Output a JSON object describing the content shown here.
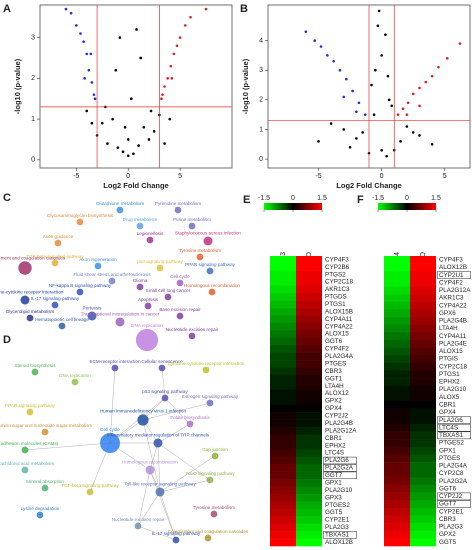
{
  "panels": [
    "A",
    "B",
    "C",
    "D",
    "E",
    "F"
  ],
  "chart_data": [
    {
      "type": "scatter",
      "xlabel": "Log2 Fold Change",
      "ylabel": "-log10 (p-value)",
      "xlim": [
        -8.5,
        10
      ],
      "ylim": [
        -0.2,
        3.8
      ],
      "xticks": [
        -5,
        0,
        5
      ],
      "yticks": [
        0,
        1,
        2,
        3
      ],
      "thresholds": {
        "x": [
          -3,
          3
        ],
        "y": 1.3
      },
      "threshold_color": "#e03030",
      "series": [
        {
          "color": "#000000",
          "x": [
            -3,
            -2.5,
            -2,
            -1.5,
            -1,
            -0.5,
            0,
            0.5,
            1,
            1.5,
            2,
            2.5,
            3,
            -4,
            4,
            -1.2,
            1.2,
            -0.3,
            0.3,
            -2.2,
            2.2,
            -3.5,
            3.5,
            0,
            -0.8,
            0.8
          ],
          "y": [
            0.6,
            0.9,
            0.4,
            1.0,
            0.3,
            0.2,
            0.1,
            0.15,
            0.35,
            0.8,
            0.5,
            0.7,
            1.1,
            1.2,
            1.0,
            2.2,
            2.5,
            0.8,
            1.5,
            1.3,
            1.2,
            0.9,
            0.4,
            0.5,
            3.0,
            3.2
          ]
        },
        {
          "color": "#2030d0",
          "x": [
            -3.2,
            -3.5,
            -3.8,
            -4,
            -4.3,
            -4.6,
            -5,
            -5.5,
            -6,
            -3.3,
            -4.2,
            -3.6
          ],
          "y": [
            1.5,
            1.9,
            2.2,
            2.6,
            2.9,
            3.1,
            3.3,
            3.6,
            3.7,
            1.6,
            2.0,
            2.6
          ]
        },
        {
          "color": "#e02020",
          "x": [
            3.2,
            3.5,
            3.8,
            4.1,
            4.4,
            4.7,
            5,
            5.5,
            6,
            7.5,
            3.3,
            4.2
          ],
          "y": [
            1.5,
            1.8,
            2.0,
            2.3,
            2.6,
            2.8,
            3.0,
            3.3,
            3.5,
            3.7,
            1.6,
            2.0
          ]
        }
      ]
    },
    {
      "type": "scatter",
      "xlabel": "Log2 Fold Change",
      "ylabel": "-log10 (p-value)",
      "xlim": [
        -9,
        7
      ],
      "ylim": [
        -0.3,
        5.2
      ],
      "xticks": [
        -5,
        0,
        5
      ],
      "yticks": [
        0,
        1,
        2,
        3,
        4
      ],
      "thresholds": {
        "x": [
          -1,
          1
        ],
        "y": 1.3
      },
      "threshold_color": "#e03030",
      "series": [
        {
          "color": "#000000",
          "x": [
            -3,
            -2,
            -1.5,
            -0.8,
            -0.5,
            0,
            0.5,
            0.8,
            1.5,
            2,
            3,
            -4,
            4,
            -0.3,
            0.3,
            -0.6,
            0.6,
            0,
            -2.5,
            2.5,
            -5,
            -1,
            1,
            -0.2,
            0.4
          ],
          "y": [
            1.0,
            0.7,
            0.9,
            2.5,
            3.0,
            3.5,
            2.8,
            1.8,
            0.6,
            1.1,
            0.8,
            1.2,
            0.5,
            4.5,
            4.2,
            1.5,
            2.0,
            0.3,
            0.4,
            0.9,
            0.6,
            0.2,
            0.3,
            5.0,
            0.1
          ]
        },
        {
          "color": "#2030d0",
          "x": [
            -1.3,
            -1.8,
            -2.3,
            -2.8,
            -3.3,
            -3.8,
            -4.3,
            -4.8,
            -5.3,
            -6,
            -2,
            -3
          ],
          "y": [
            1.5,
            1.9,
            2.3,
            2.7,
            3.0,
            3.3,
            3.5,
            3.8,
            4.0,
            4.3,
            1.6,
            2.1
          ]
        },
        {
          "color": "#e02020",
          "x": [
            1.3,
            1.7,
            2.1,
            2.5,
            3,
            3.5,
            4,
            4.5,
            5.2,
            6.2,
            2,
            3
          ],
          "y": [
            1.5,
            1.7,
            1.9,
            2.2,
            2.4,
            2.6,
            2.8,
            3.1,
            3.4,
            3.9,
            1.5,
            1.8
          ]
        }
      ]
    },
    {
      "type": "heatmap",
      "columns": [
        "ITOC-03",
        "ITOC-03-D"
      ],
      "colorbar": {
        "ticks": [
          -1.5,
          0,
          1.5
        ],
        "colors": [
          "#00ff00",
          "#000000",
          "#ff0000"
        ]
      },
      "rows": [
        "CYP4F3",
        "CYP2B6",
        "PTGS2",
        "CYP2C18",
        "AKR1C3",
        "PTGDS",
        "PTGS1",
        "ALOX15B",
        "CYP4A11",
        "CYP4A22",
        "ALOX15",
        "GGT6",
        "CYP4F2",
        "PLA2G4A",
        "PTGES",
        "CBR3",
        "GGT1",
        "LTA4H",
        "ALOX12",
        "GPX2",
        "GPX4",
        "CYP2J2",
        "PLA2G4B",
        "PLA2G12A",
        "CBR1",
        "EPHX2",
        "LTC4S",
        "PLA2G6",
        "PLA2G2A",
        "GGT7",
        "GPX1",
        "PLA2G10",
        "GPX3",
        "PTGES2",
        "GGT5",
        "CYP2E1",
        "PLA2G3",
        "TBXAS1",
        "ALOX12B"
      ],
      "values": [
        [
          -1.5,
          1.5
        ],
        [
          -1.5,
          1.5
        ],
        [
          -1.4,
          1.4
        ],
        [
          -1.4,
          1.4
        ],
        [
          -1.3,
          1.3
        ],
        [
          -1.2,
          1.2
        ],
        [
          -1.1,
          1.1
        ],
        [
          -1.0,
          1.0
        ],
        [
          -0.9,
          0.9
        ],
        [
          -0.8,
          0.8
        ],
        [
          -0.7,
          0.7
        ],
        [
          -0.6,
          0.6
        ],
        [
          -0.5,
          0.5
        ],
        [
          -0.4,
          0.4
        ],
        [
          -0.4,
          0.4
        ],
        [
          -0.3,
          0.3
        ],
        [
          -0.2,
          0.2
        ],
        [
          -0.2,
          0.2
        ],
        [
          -0.1,
          0.1
        ],
        [
          -0.1,
          0.1
        ],
        [
          0,
          0
        ],
        [
          0.1,
          -0.1
        ],
        [
          0.1,
          -0.1
        ],
        [
          0.2,
          -0.2
        ],
        [
          0.3,
          -0.3
        ],
        [
          0.3,
          -0.3
        ],
        [
          0.4,
          -0.4
        ],
        [
          0.5,
          -0.5
        ],
        [
          0.6,
          -0.6
        ],
        [
          0.6,
          -0.6
        ],
        [
          0.7,
          -0.7
        ],
        [
          0.8,
          -0.8
        ],
        [
          0.9,
          -0.9
        ],
        [
          1.0,
          -1.0
        ],
        [
          1.1,
          -1.1
        ],
        [
          1.2,
          -1.2
        ],
        [
          1.3,
          -1.3
        ],
        [
          1.4,
          -1.4
        ],
        [
          1.5,
          -1.5
        ]
      ],
      "boxed": [
        27,
        28,
        29,
        37
      ]
    },
    {
      "type": "heatmap",
      "columns": [
        "ITOC-04",
        "ITOC-04_D"
      ],
      "colorbar": {
        "ticks": [
          -1.5,
          0,
          1.5
        ],
        "colors": [
          "#00ff00",
          "#000000",
          "#ff0000"
        ]
      },
      "rows": [
        "CYP4F3",
        "ALOX12B",
        "CYP2U1",
        "CYP4F2",
        "PLA2G12A",
        "AKR1C3",
        "CYP4A22",
        "GPX6",
        "PLA2G4B",
        "LTA4H",
        "CYP4A11",
        "PLA2G4E",
        "ALOX15",
        "PTGIS",
        "CYP2C18",
        "PTGS1",
        "EPHX2",
        "PLA2G10",
        "ALOX5",
        "CBR1",
        "GPX4",
        "PLA2G6",
        "LTC4S",
        "TBXAS1",
        "PTGES2",
        "GPX1",
        "PTGES",
        "PLA2G4A",
        "CYP2C8",
        "PLA2G2A",
        "GGT6",
        "CYP2J2",
        "GGT7",
        "CYP2E1",
        "CBR3",
        "PLA2G3",
        "GPX2",
        "GGT5"
      ],
      "values": [
        [
          -1.5,
          1.5
        ],
        [
          -1.5,
          1.5
        ],
        [
          -1.4,
          1.4
        ],
        [
          -1.4,
          1.4
        ],
        [
          -1.3,
          1.3
        ],
        [
          -1.2,
          1.2
        ],
        [
          -1.1,
          1.1
        ],
        [
          -1.0,
          1.0
        ],
        [
          -0.9,
          0.9
        ],
        [
          -0.8,
          0.8
        ],
        [
          -0.7,
          0.7
        ],
        [
          -0.6,
          0.6
        ],
        [
          -0.5,
          0.5
        ],
        [
          -0.4,
          0.4
        ],
        [
          -0.3,
          0.3
        ],
        [
          -0.2,
          0.2
        ],
        [
          -0.2,
          0.2
        ],
        [
          -0.1,
          0.1
        ],
        [
          -0.1,
          0.1
        ],
        [
          0,
          0
        ],
        [
          0.1,
          -0.1
        ],
        [
          0.1,
          -0.1
        ],
        [
          0.2,
          -0.2
        ],
        [
          0.3,
          -0.3
        ],
        [
          0.3,
          -0.3
        ],
        [
          0.4,
          -0.4
        ],
        [
          0.5,
          -0.5
        ],
        [
          0.6,
          -0.6
        ],
        [
          0.6,
          -0.6
        ],
        [
          0.7,
          -0.7
        ],
        [
          0.8,
          -0.8
        ],
        [
          0.9,
          -0.9
        ],
        [
          1.0,
          -1.0
        ],
        [
          1.1,
          -1.1
        ],
        [
          1.2,
          -1.2
        ],
        [
          1.3,
          -1.3
        ],
        [
          1.4,
          -1.4
        ],
        [
          1.5,
          -1.5
        ]
      ],
      "boxed": [
        2,
        21,
        22,
        23,
        31,
        32
      ]
    }
  ],
  "diagrams": [
    {
      "nodes": [
        {
          "label": "Glycosaminoglycan biosynthesis",
          "color": "#e58a3a",
          "size": 2
        },
        {
          "label": "Axon guidance",
          "color": "#e58a3a",
          "size": 2
        },
        {
          "label": "Complement and coagulation cascades",
          "color": "#a0306a",
          "size": 5
        },
        {
          "label": "TGF-beta signaling pathway",
          "color": "#e0b030",
          "size": 2
        },
        {
          "label": "Axon regeneration",
          "color": "#4090e0",
          "size": 2
        },
        {
          "label": "Fluid shear stress and atherosclerosis",
          "color": "#7080d0",
          "size": 2
        },
        {
          "label": "NF-kappa B signaling pathway",
          "color": "#3050c0",
          "size": 2
        },
        {
          "label": "Cytokine-cytokine receptor interaction",
          "color": "#2040a0",
          "size": 3
        },
        {
          "label": "IL-17 signaling pathway",
          "color": "#3050c0",
          "size": 2
        },
        {
          "label": "Glycerolipid metabolism",
          "color": "#303090",
          "size": 2
        },
        {
          "label": "Pertussis",
          "color": "#4050b0",
          "size": 3
        },
        {
          "label": "Hematopoietic cell lineage",
          "color": "#3060a0",
          "size": 2
        },
        {
          "label": "Glutathione metabolism",
          "color": "#4090e0",
          "size": 2
        },
        {
          "label": "Drug metabolism",
          "color": "#60a0e0",
          "size": 2
        },
        {
          "label": "Legionellosis",
          "color": "#a03090",
          "size": 2
        },
        {
          "label": "Pyrimidine metabolism",
          "color": "#7070c0",
          "size": 2
        },
        {
          "label": "Purine metabolism",
          "color": "#7070c0",
          "size": 2
        },
        {
          "label": "Staphylococcus aureus infection",
          "color": "#c03080",
          "size": 3
        },
        {
          "label": "Tyrosine metabolism",
          "color": "#e06030",
          "size": 2
        },
        {
          "label": "PPAR signaling pathway",
          "color": "#4070c0",
          "size": 2
        },
        {
          "label": "p53 signaling pathway",
          "color": "#e0c040",
          "size": 2
        },
        {
          "label": "Homologous recombination",
          "color": "#e06030",
          "size": 2
        },
        {
          "label": "Glioma",
          "color": "#8040a0",
          "size": 2
        },
        {
          "label": "Small cell lung cancer",
          "color": "#8040a0",
          "size": 2
        },
        {
          "label": "Cell cycle",
          "color": "#a060c0",
          "size": 2
        },
        {
          "label": "Apoptosis",
          "color": "#8040a0",
          "size": 2
        },
        {
          "label": "Base excision repair",
          "color": "#8040a0",
          "size": 2
        },
        {
          "label": "Transcriptional misregulation in cancer",
          "color": "#a060c0",
          "size": 3
        },
        {
          "label": "DNA replication",
          "color": "#c080e0",
          "size": 9
        },
        {
          "label": "Nucleotide excision repair",
          "color": "#8040a0",
          "size": 2
        }
      ]
    },
    {
      "nodes": [
        {
          "label": "Steroid biosynthesis",
          "color": "#50b050",
          "size": 2
        },
        {
          "label": "DNA replication",
          "color": "#90c050",
          "size": 2
        },
        {
          "label": "ECM-receptor interaction",
          "color": "#5050b0",
          "size": 2
        },
        {
          "label": "Cellular senescence",
          "color": "#5050b0",
          "size": 2
        },
        {
          "label": "Cytokine-cytokine receptor interaction",
          "color": "#c0c030",
          "size": 2
        },
        {
          "label": "PPAR signaling pathway",
          "color": "#d0c030",
          "size": 2
        },
        {
          "label": "Amino sugar and nucleotide sugar metabolism",
          "color": "#d09030",
          "size": 2
        },
        {
          "label": "Cell adhesion molecules (CAMs)",
          "color": "#40b050",
          "size": 2
        },
        {
          "label": "Arachidonic acid metabolism",
          "color": "#60b0b0",
          "size": 2
        },
        {
          "label": "Mineral absorption",
          "color": "#50b070",
          "size": 2
        },
        {
          "label": "Lysine degradation",
          "color": "#3080d0",
          "size": 2
        },
        {
          "label": "TGF-beta signaling pathway",
          "color": "#c0c030",
          "size": 2
        },
        {
          "label": "Cell cycle",
          "color": "#3080f0",
          "size": 8
        },
        {
          "label": "Human immunodeficiency virus 1 infection",
          "color": "#2050a0",
          "size": 4
        },
        {
          "label": "p53 signaling pathway",
          "color": "#5050b0",
          "size": 2
        },
        {
          "label": "Estrogen signaling pathway",
          "color": "#7070c0",
          "size": 2
        },
        {
          "label": "Folate biosynthesis",
          "color": "#b070c0",
          "size": 2
        },
        {
          "label": "Inflammatory mediator regulation of TRP channels",
          "color": "#3050b0",
          "size": 3
        },
        {
          "label": "Gap junction",
          "color": "#90b030",
          "size": 2
        },
        {
          "label": "Homologous recombination",
          "color": "#b090d0",
          "size": 3
        },
        {
          "label": "FoxO signaling pathway",
          "color": "#90b050",
          "size": 2
        },
        {
          "label": "Toll-like receptor signaling pathway",
          "color": "#5070b0",
          "size": 3
        },
        {
          "label": "Tyrosine metabolism",
          "color": "#a05070",
          "size": 2
        },
        {
          "label": "Complement and coagulation cascades",
          "color": "#b09030",
          "size": 2
        },
        {
          "label": "Nucleotide excision repair",
          "color": "#7090b0",
          "size": 2
        },
        {
          "label": "IL-17 signaling pathway",
          "color": "#3050b0",
          "size": 2
        }
      ]
    }
  ]
}
